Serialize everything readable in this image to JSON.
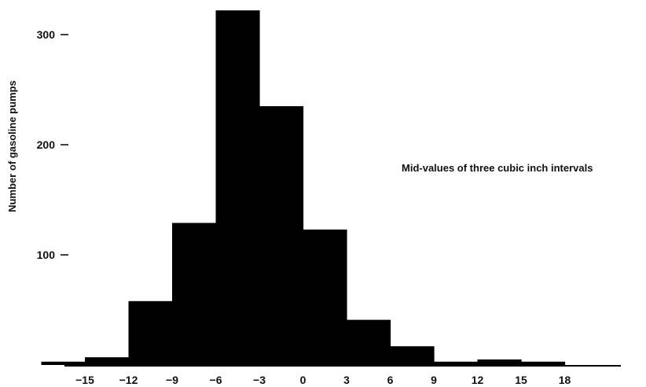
{
  "chart_data": {
    "type": "bar",
    "ylabel": "Number of gasoline pumps",
    "annotation": "Mid-values of three cubic inch intervals",
    "x_mid_values": [
      -15,
      -12,
      -9,
      -6,
      -3,
      0,
      3,
      6,
      9,
      12,
      15,
      18
    ],
    "x_tick_labels": [
      "−15",
      "−12",
      "−9",
      "−6",
      "−3",
      "0",
      "3",
      "6",
      "9",
      "12",
      "15",
      "18"
    ],
    "y_ticks": [
      100,
      200,
      300
    ],
    "y_tick_labels": [
      "100",
      "200",
      "300"
    ],
    "ylim": [
      0,
      330
    ],
    "bin_width": 3,
    "bars": [
      {
        "x": -16.5,
        "value": 3
      },
      {
        "x": -13.5,
        "value": 7
      },
      {
        "x": -10.5,
        "value": 58
      },
      {
        "x": -7.5,
        "value": 129
      },
      {
        "x": -4.5,
        "value": 322
      },
      {
        "x": -1.5,
        "value": 235
      },
      {
        "x": 1.5,
        "value": 123
      },
      {
        "x": 4.5,
        "value": 41
      },
      {
        "x": 7.5,
        "value": 17
      },
      {
        "x": 10.5,
        "value": 3
      },
      {
        "x": 13.5,
        "value": 5
      },
      {
        "x": 16.5,
        "value": 3
      }
    ],
    "bar_color": "#000000",
    "grid": false
  }
}
